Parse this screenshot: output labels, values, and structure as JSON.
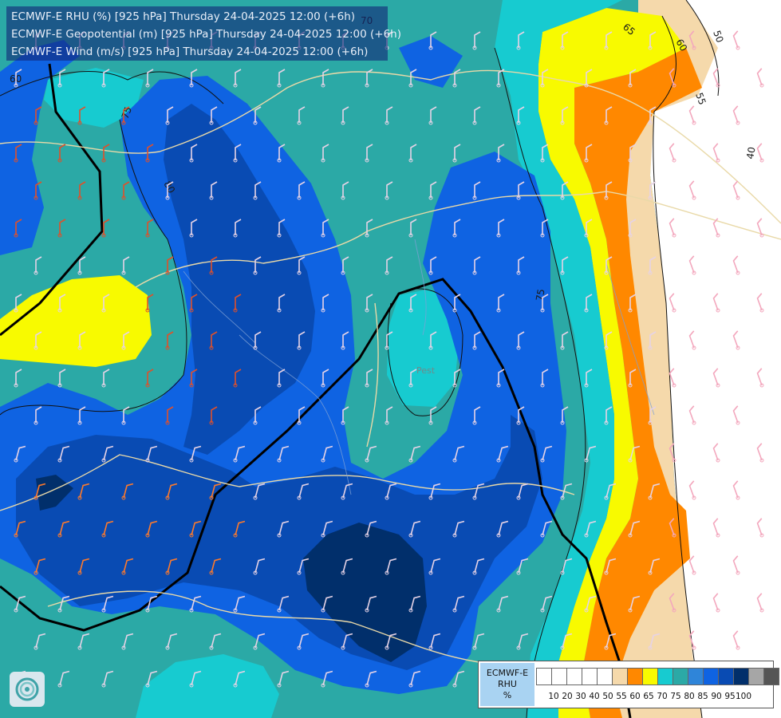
{
  "header": {
    "lines": [
      "ECMWF-E RHU (%) [925 hPa] Thursday 24-04-2025 12:00 (+6h)",
      "ECMWF-E Geopotential (m) [925 hPa] Thursday 24-04-2025 12:00 (+6h)",
      "ECMWF-E Wind (m/s) [925 hPa] Thursday 24-04-2025 12:00 (+6h)"
    ]
  },
  "legend": {
    "label_lines": [
      "ECMWF-E",
      "RHU",
      "%"
    ],
    "colors": [
      "#ffffff",
      "#ffffff",
      "#ffffff",
      "#ffffff",
      "#ffffff",
      "#f5d9ab",
      "#ff8800",
      "#f8fa00",
      "#17cbd0",
      "#2ba9a6",
      "#2f85d9",
      "#0f63e2",
      "#094bb3",
      "#012f6b",
      "#a6a6a6",
      "#555555"
    ],
    "ticks": [
      "10",
      "20",
      "30",
      "40",
      "50",
      "55",
      "60",
      "65",
      "70",
      "75",
      "80",
      "85",
      "90",
      "95",
      "100"
    ]
  },
  "contour_labels": {
    "geopotential": [
      "75",
      "75",
      "80",
      "60",
      "60",
      "55",
      "50",
      "40",
      "70",
      "65"
    ]
  },
  "map_text": {
    "city": "Pest"
  },
  "colors": {
    "teal": "#2ba9a6",
    "cyan": "#17cbd0",
    "blue": "#0f63e2",
    "dark_blue": "#094bb3",
    "navy": "#012f6b",
    "yellow": "#f8fa00",
    "orange": "#ff8800",
    "tan": "#f5d9ab"
  },
  "icons": {
    "logo": "ecmwf-logo-icon"
  }
}
